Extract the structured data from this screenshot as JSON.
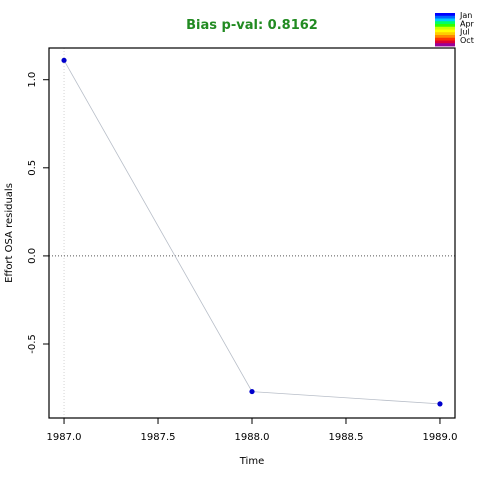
{
  "chart_data": {
    "type": "scatter",
    "title": "Bias p-val: 0.8162",
    "title_color": "#228B22",
    "xlabel": "Time",
    "ylabel": "Effort OSA residuals",
    "xlim": [
      1986.92,
      1989.08
    ],
    "ylim": [
      -0.92,
      1.18
    ],
    "x_ticks": [
      1987.0,
      1987.5,
      1988.0,
      1988.5,
      1989.0
    ],
    "x_tick_labels": [
      "1987.0",
      "1987.5",
      "1988.0",
      "1988.5",
      "1989.0"
    ],
    "y_ticks": [
      -0.5,
      0.0,
      0.5,
      1.0
    ],
    "y_tick_labels": [
      "-0.5",
      "0.0",
      "0.5",
      "1.0"
    ],
    "reference_line_y": 0.0,
    "grid": false,
    "points": [
      {
        "x": 1987.0,
        "y": 1.11
      },
      {
        "x": 1988.0,
        "y": -0.77
      },
      {
        "x": 1989.0,
        "y": -0.84
      }
    ],
    "point_color": "#0000CC",
    "connect_line_color": "#B8BEC8",
    "vline_x": 1987.0,
    "legend": {
      "placement": "top-right",
      "labels": [
        "Jan",
        "Apr",
        "Jul",
        "Oct"
      ],
      "colors": [
        "#0000FF",
        "#0066FF",
        "#00CCFF",
        "#00FF66",
        "#33FF00",
        "#CCFF00",
        "#FFFF00",
        "#FFCC00",
        "#FF8800",
        "#FF3300",
        "#DD0033",
        "#990099"
      ]
    }
  }
}
